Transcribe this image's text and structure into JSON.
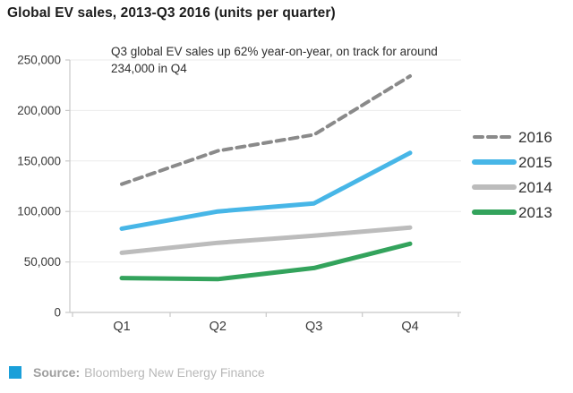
{
  "title": "Global EV sales, 2013-Q3 2016 (units per quarter)",
  "annotation": {
    "line1": "Q3 global EV sales up 62% year-on-year, on track for around",
    "line2": "234,000 in Q4"
  },
  "footer": {
    "source_label": "Source:",
    "source_text": "Bloomberg New Energy Finance",
    "accent_color": "#1a9fd9"
  },
  "chart_data": {
    "type": "line",
    "categories": [
      "Q1",
      "Q2",
      "Q3",
      "Q4"
    ],
    "series": [
      {
        "name": "2016",
        "values": [
          127000,
          160000,
          176000,
          234000
        ],
        "color": "#8a8a8a",
        "dashed": true
      },
      {
        "name": "2015",
        "values": [
          83000,
          100000,
          108000,
          158000
        ],
        "color": "#47b6e7",
        "dashed": false
      },
      {
        "name": "2014",
        "values": [
          59000,
          69000,
          76000,
          84000
        ],
        "color": "#bcbcbc",
        "dashed": false
      },
      {
        "name": "2013",
        "values": [
          34000,
          33000,
          44000,
          68000
        ],
        "color": "#33a35c",
        "dashed": false
      }
    ],
    "ylim": [
      0,
      250000
    ],
    "ytick_step": 50000,
    "ytick_labels": [
      "0",
      "50,000",
      "100,000",
      "150,000",
      "200,000",
      "250,000"
    ],
    "grid": true,
    "legend_position": "right",
    "axis_color": "#c8c8c8",
    "grid_color": "#ebebeb",
    "tick_label_color": "#3a3a3a",
    "legend_label_color": "#2e2e2e"
  }
}
